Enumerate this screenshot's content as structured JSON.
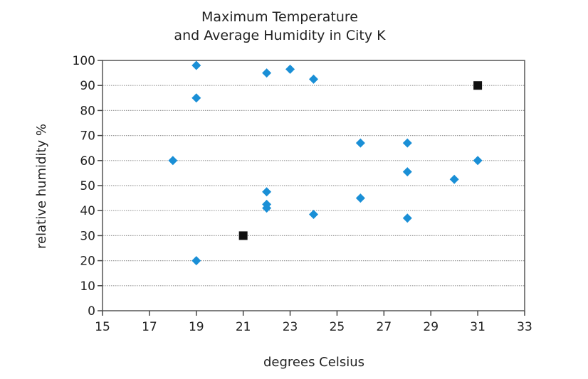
{
  "chart_data": {
    "type": "scatter",
    "title_lines": [
      "Maximum Temperature",
      "and Average Humidity in City K"
    ],
    "xlabel": "degrees Celsius",
    "ylabel": "relative humidity %",
    "xlim": [
      15,
      33
    ],
    "ylim": [
      0,
      100
    ],
    "x_ticks": [
      15,
      17,
      19,
      21,
      23,
      25,
      27,
      29,
      31,
      33
    ],
    "y_ticks": [
      0,
      10,
      20,
      30,
      40,
      50,
      60,
      70,
      80,
      90,
      100
    ],
    "grid": "horizontal dotted",
    "series": [
      {
        "marker": "diamond",
        "color": "#1a8fd6",
        "points": [
          {
            "x": 18,
            "y": 60
          },
          {
            "x": 19,
            "y": 98
          },
          {
            "x": 19,
            "y": 85
          },
          {
            "x": 19,
            "y": 20
          },
          {
            "x": 22,
            "y": 95
          },
          {
            "x": 22,
            "y": 47.5
          },
          {
            "x": 22,
            "y": 42.5
          },
          {
            "x": 22,
            "y": 41
          },
          {
            "x": 23,
            "y": 96.5
          },
          {
            "x": 24,
            "y": 92.5
          },
          {
            "x": 24,
            "y": 38.5
          },
          {
            "x": 26,
            "y": 67
          },
          {
            "x": 26,
            "y": 45
          },
          {
            "x": 28,
            "y": 67
          },
          {
            "x": 28,
            "y": 55.5
          },
          {
            "x": 28,
            "y": 37
          },
          {
            "x": 30,
            "y": 52.5
          },
          {
            "x": 31,
            "y": 60
          }
        ]
      },
      {
        "marker": "square",
        "color": "#111111",
        "points": [
          {
            "x": 21,
            "y": 30
          },
          {
            "x": 31,
            "y": 90
          }
        ]
      }
    ]
  }
}
